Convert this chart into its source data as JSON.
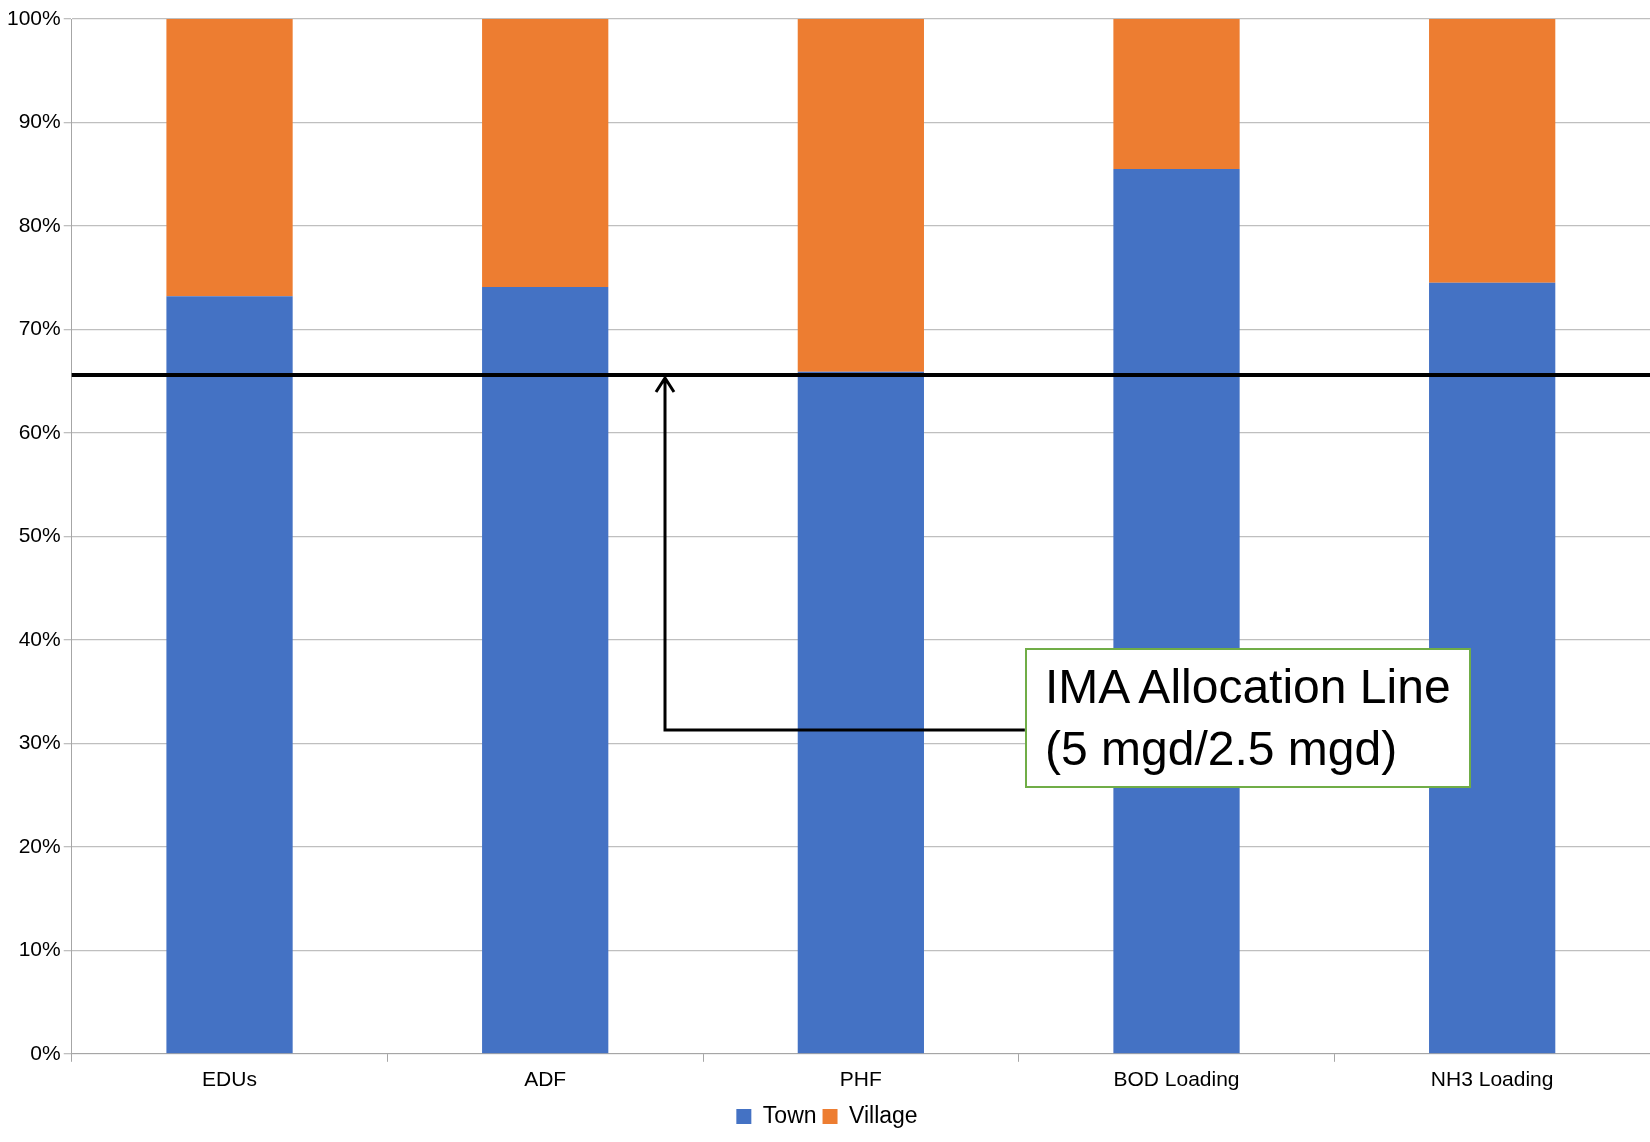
{
  "chart_data": {
    "type": "bar",
    "stacked": true,
    "categories": [
      "EDUs",
      "ADF",
      "PHF",
      "BOD Loading",
      "NH3 Loading"
    ],
    "series": [
      {
        "name": "Town",
        "color": "#4472c4",
        "values": [
          73.2,
          74.1,
          65.9,
          85.5,
          74.5
        ]
      },
      {
        "name": "Village",
        "color": "#ed7d31",
        "values": [
          26.8,
          25.9,
          34.1,
          14.5,
          25.5
        ]
      }
    ],
    "ylim": [
      0,
      100
    ],
    "yticks": [
      {
        "value": 0,
        "label": "0%"
      },
      {
        "value": 10,
        "label": "10%"
      },
      {
        "value": 20,
        "label": "20%"
      },
      {
        "value": 30,
        "label": "30%"
      },
      {
        "value": 40,
        "label": "40%"
      },
      {
        "value": 50,
        "label": "50%"
      },
      {
        "value": 60,
        "label": "60%"
      },
      {
        "value": 70,
        "label": "70%"
      },
      {
        "value": 80,
        "label": "80%"
      },
      {
        "value": 90,
        "label": "90%"
      },
      {
        "value": 100,
        "label": "100%"
      }
    ],
    "grid": "y",
    "legend": "bottom",
    "ref_lines": [
      {
        "axis": "y",
        "value": 65.6,
        "label": "IMA Allocation Line\n(5 mgd/2.5 mgd)",
        "color": "#000000"
      }
    ]
  }
}
